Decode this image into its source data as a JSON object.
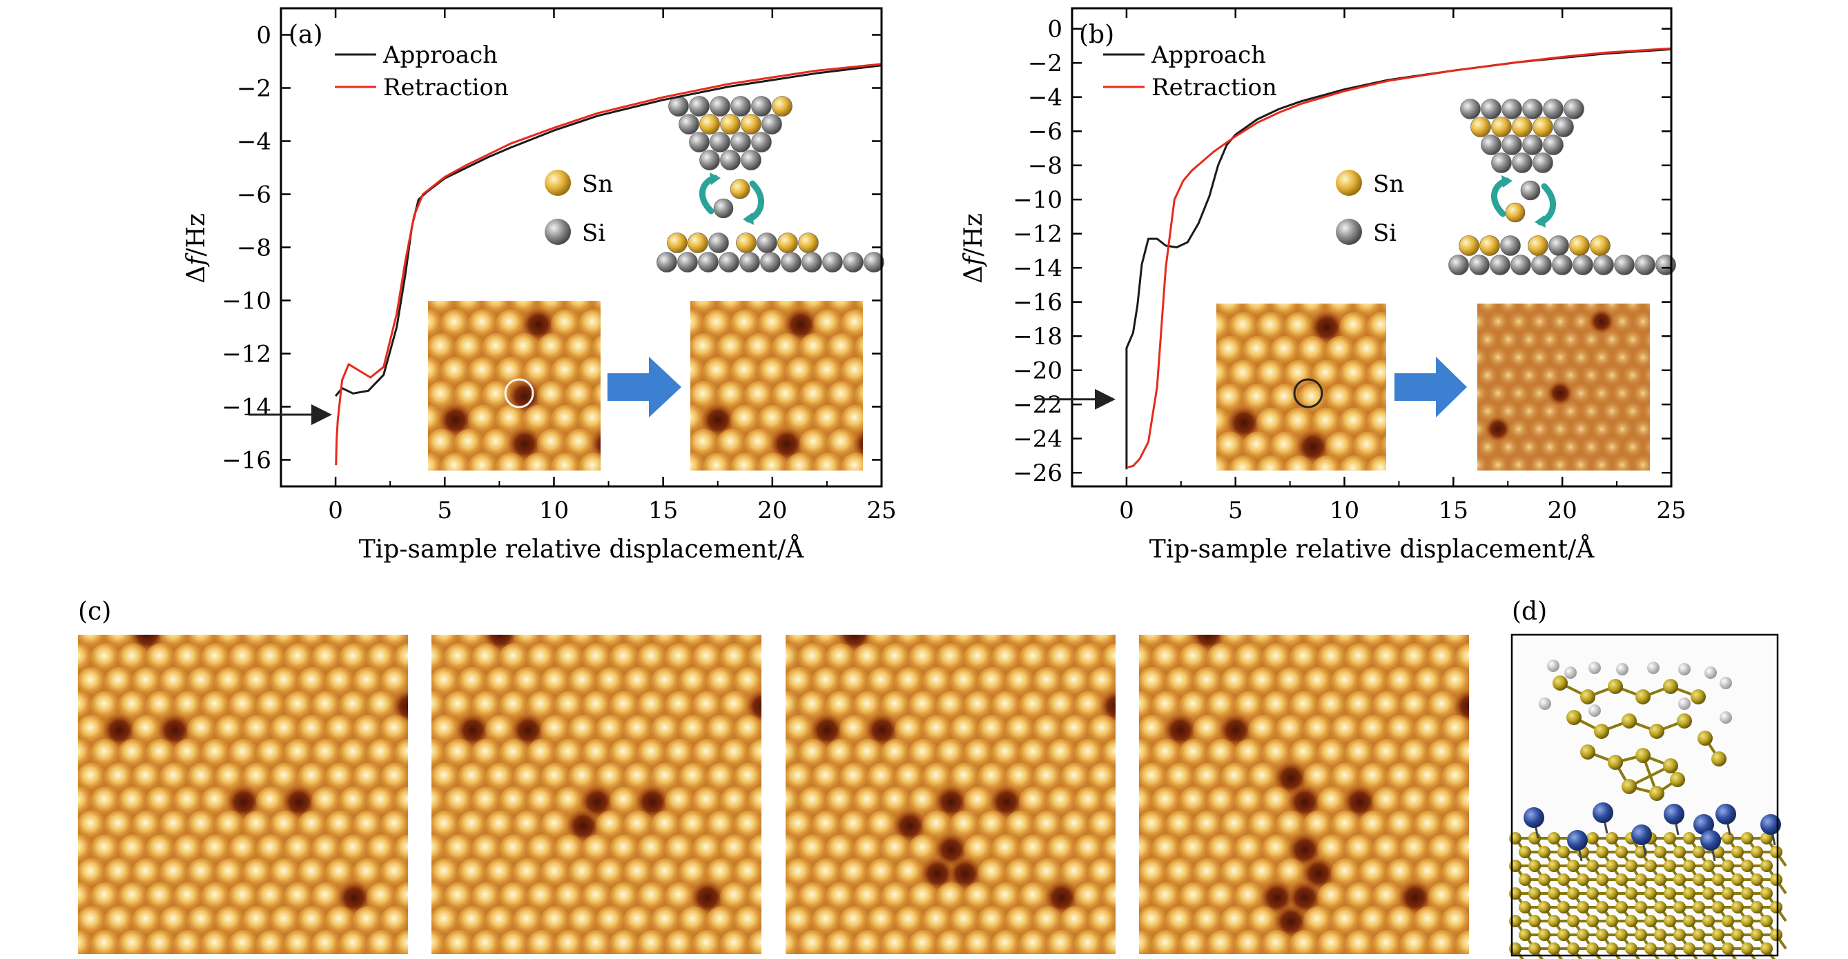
{
  "figure": {
    "panel_c_label": "(c)",
    "panel_d_label": "(d)"
  },
  "colors": {
    "approach": "#1a1a1a",
    "retraction": "#e8291c",
    "sn_atom": "#e6b53a",
    "si_atom": "#8f8f8f",
    "arrow_blue": "#3d7fd1",
    "swap_arrow": "#2aa398",
    "stm_bright": "#fbe6a0",
    "stm_mid": "#d88a2a",
    "stm_dark": "#5a1a08",
    "mol_gold": "#b8a020",
    "mol_blue": "#2b4a9a",
    "mol_h": "#dcdcdc"
  },
  "chart_data": [
    {
      "id": "a",
      "type": "line",
      "panel_label": "(a)",
      "xlabel": "Tip-sample relative displacement/Å",
      "ylabel_delta": "Δ",
      "ylabel_f": "f",
      "ylabel_unit": "/Hz",
      "xlim": [
        -2.5,
        25
      ],
      "ylim": [
        -17.0,
        1.0
      ],
      "xticks": [
        0,
        5,
        10,
        15,
        20,
        25
      ],
      "yticks": [
        0,
        -2,
        -4,
        -6,
        -8,
        -10,
        -12,
        -14,
        -16
      ],
      "ytick_labels": [
        "0",
        "−2",
        "−4",
        "−6",
        "−8",
        "−10",
        "−12",
        "−14",
        "−16"
      ],
      "legend": [
        "Approach",
        "Retraction"
      ],
      "atom_legend": [
        "Sn",
        "Si"
      ],
      "arrow_y": -14.3,
      "series": [
        {
          "name": "Approach",
          "x": [
            0,
            0.3,
            0.8,
            1.5,
            2.2,
            2.8,
            3.2,
            3.5,
            3.8,
            4.2,
            5,
            6,
            7,
            8,
            10,
            12,
            15,
            18,
            20,
            22,
            25
          ],
          "y": [
            -13.6,
            -13.3,
            -13.5,
            -13.4,
            -12.8,
            -11.0,
            -9.0,
            -7.2,
            -6.2,
            -5.9,
            -5.4,
            -5.0,
            -4.6,
            -4.25,
            -3.6,
            -3.05,
            -2.45,
            -1.95,
            -1.7,
            -1.45,
            -1.15
          ]
        },
        {
          "name": "Retraction",
          "x": [
            0.02,
            0.05,
            0.1,
            0.3,
            0.6,
            1.0,
            1.6,
            2.2,
            2.8,
            3.2,
            3.6,
            4.0,
            5,
            6,
            7,
            8,
            10,
            12,
            15,
            18,
            20,
            22,
            25
          ],
          "y": [
            -16.2,
            -15.2,
            -14.5,
            -13.0,
            -12.4,
            -12.6,
            -12.9,
            -12.5,
            -10.5,
            -8.5,
            -6.8,
            -6.0,
            -5.35,
            -4.9,
            -4.5,
            -4.1,
            -3.5,
            -2.95,
            -2.35,
            -1.85,
            -1.6,
            -1.35,
            -1.1
          ]
        }
      ]
    },
    {
      "id": "b",
      "type": "line",
      "panel_label": "(b)",
      "xlabel": "Tip-sample relative displacement/Å",
      "ylabel_delta": "Δ",
      "ylabel_f": "f",
      "ylabel_unit": "/Hz",
      "xlim": [
        -2.5,
        25
      ],
      "ylim": [
        -26.8,
        1.2
      ],
      "xticks": [
        0,
        5,
        10,
        15,
        20,
        25
      ],
      "yticks": [
        0,
        -2,
        -4,
        -6,
        -8,
        -10,
        -12,
        -14,
        -16,
        -18,
        -20,
        -22,
        -24,
        -26
      ],
      "ytick_labels": [
        "0",
        "−2",
        "−4",
        "−6",
        "−8",
        "−10",
        "−12",
        "−14",
        "−16",
        "−18",
        "−20",
        "−22",
        "−24",
        "−26"
      ],
      "legend": [
        "Approach",
        "Retraction"
      ],
      "atom_legend": [
        "Sn",
        "Si"
      ],
      "arrow_y": -21.7,
      "series": [
        {
          "name": "Approach",
          "x": [
            0,
            0,
            0.1,
            0.3,
            0.5,
            0.7,
            1.0,
            1.4,
            1.8,
            2.3,
            2.8,
            3.3,
            3.8,
            4.2,
            4.6,
            5.0,
            6,
            7,
            8,
            10,
            12,
            15,
            18,
            20,
            22,
            25
          ],
          "y": [
            -25.8,
            -18.7,
            -18.4,
            -17.8,
            -16.2,
            -13.8,
            -12.3,
            -12.3,
            -12.7,
            -12.8,
            -12.5,
            -11.4,
            -9.8,
            -8.0,
            -6.8,
            -6.2,
            -5.3,
            -4.7,
            -4.25,
            -3.55,
            -3.0,
            -2.45,
            -1.95,
            -1.7,
            -1.45,
            -1.2
          ]
        },
        {
          "name": "Retraction",
          "x": [
            0,
            0.3,
            0.6,
            1.0,
            1.4,
            1.8,
            2.2,
            2.6,
            3.0,
            4.0,
            5.0,
            6,
            7,
            8,
            10,
            12,
            15,
            18,
            20,
            22,
            25
          ],
          "y": [
            -25.7,
            -25.6,
            -25.2,
            -24.2,
            -21.0,
            -14.0,
            -10.0,
            -8.9,
            -8.3,
            -7.2,
            -6.3,
            -5.5,
            -4.9,
            -4.4,
            -3.65,
            -3.05,
            -2.45,
            -1.95,
            -1.65,
            -1.4,
            -1.15
          ]
        }
      ]
    }
  ]
}
